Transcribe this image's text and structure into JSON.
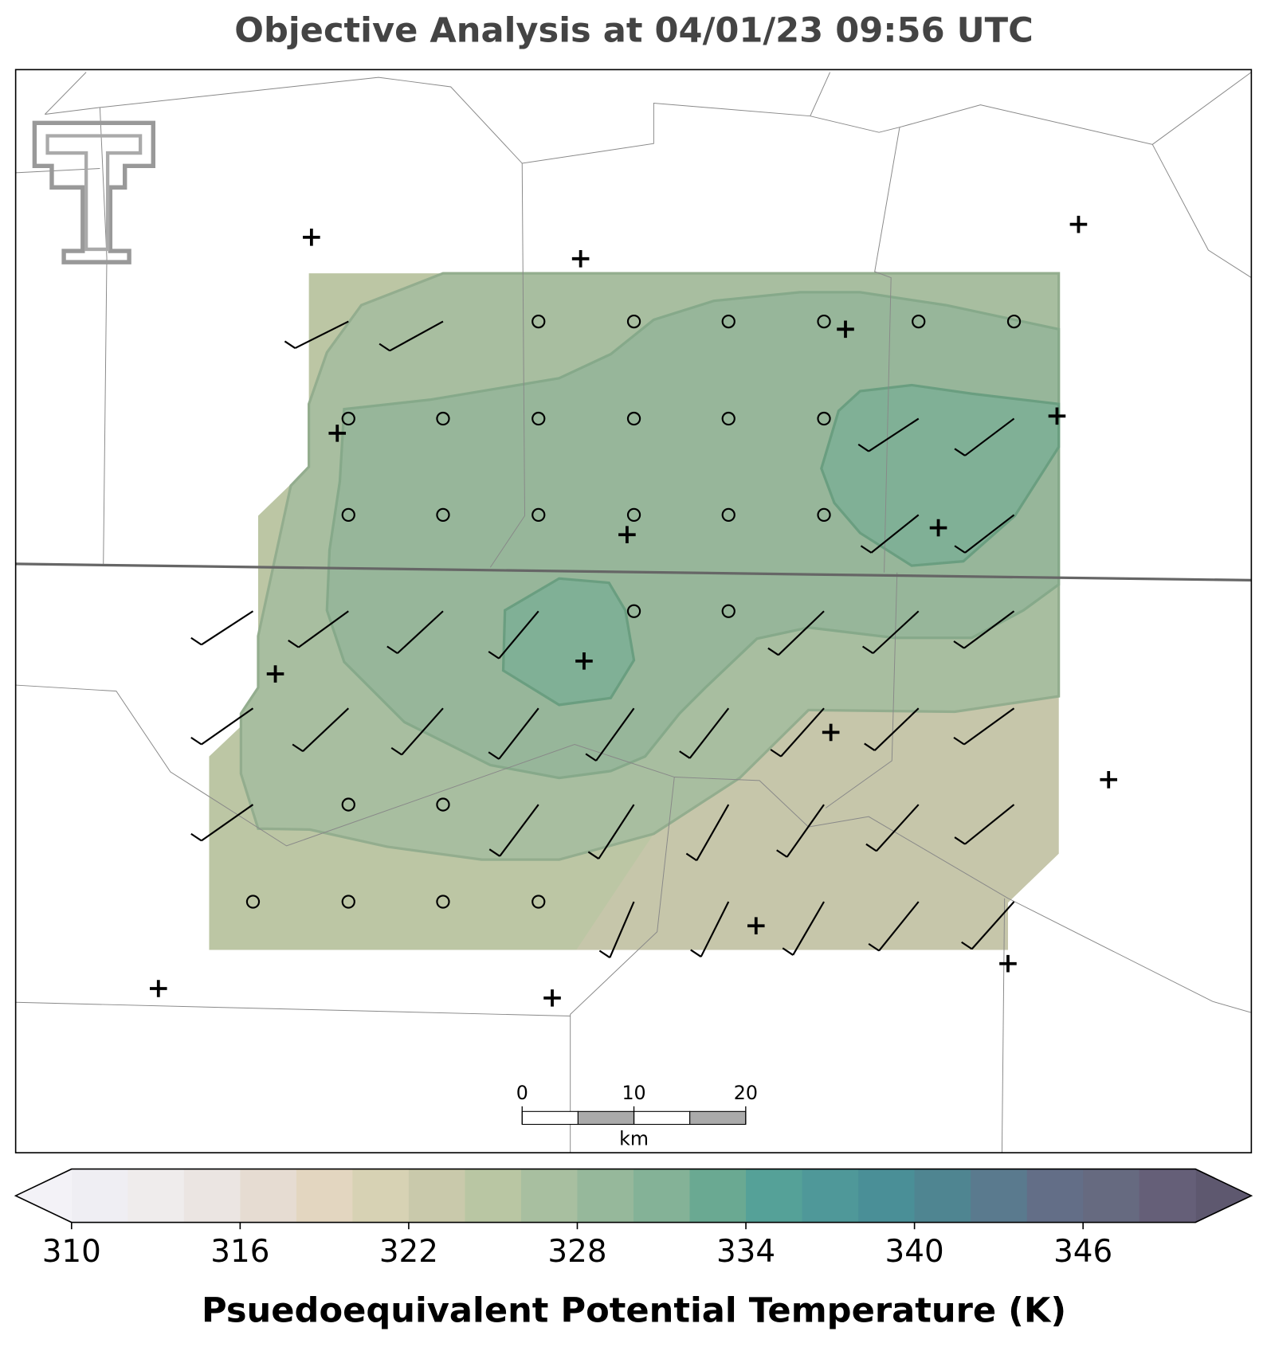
{
  "title": "Objective Analysis at 04/01/23 09:56 UTC",
  "colorbar": {
    "label": "Psuedoequivalent Potential Temperature (K)",
    "levels": [
      310,
      312,
      314,
      316,
      318,
      320,
      322,
      324,
      326,
      328,
      330,
      332,
      334,
      336,
      338,
      340,
      342,
      344,
      346,
      348,
      350
    ],
    "ticks": [
      310,
      316,
      322,
      328,
      334,
      340,
      346
    ],
    "colors": [
      "#efeef3",
      "#efecec",
      "#ebe5e2",
      "#e6dcd2",
      "#e3d6c0",
      "#d7d2b4",
      "#c9c9ab",
      "#b9c6a3",
      "#a8bfa0",
      "#96b89b",
      "#84b297",
      "#6aa992",
      "#55a198",
      "#4f9899",
      "#4a8f97",
      "#4f8591",
      "#5a7a8e",
      "#636e87",
      "#666a80",
      "#655f78"
    ],
    "under_color": "#f3f2f7",
    "over_color": "#5e586f"
  },
  "scale_bar": {
    "ticks": [
      0,
      10,
      20
    ],
    "unit": "km"
  }
}
